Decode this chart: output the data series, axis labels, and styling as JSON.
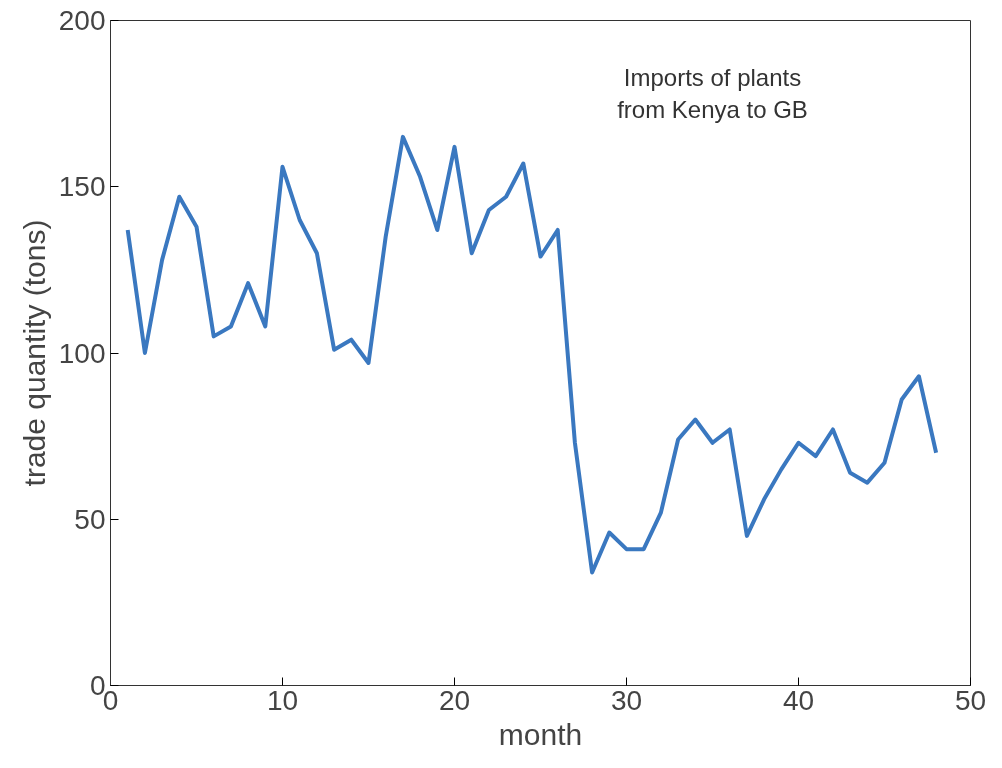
{
  "chart_data": {
    "type": "line",
    "xlabel": "month",
    "ylabel": "trade quantity (tons)",
    "annotations": [
      "Imports of plants\nfrom Kenya to GB"
    ],
    "x": [
      1,
      2,
      3,
      4,
      5,
      6,
      7,
      8,
      9,
      10,
      11,
      12,
      13,
      14,
      15,
      16,
      17,
      18,
      19,
      20,
      21,
      22,
      23,
      24,
      25,
      26,
      27,
      28,
      29,
      30,
      31,
      32,
      33,
      34,
      35,
      36,
      37,
      38,
      39,
      40,
      41,
      42,
      43,
      44,
      45,
      46,
      47,
      48
    ],
    "series": [
      {
        "color": "#3a78c0",
        "values": [
          137,
          100,
          128,
          147,
          138,
          105,
          108,
          121,
          108,
          156,
          140,
          130,
          101,
          104,
          97,
          135,
          165,
          153,
          137,
          162,
          130,
          143,
          147,
          157,
          129,
          137,
          73,
          34,
          46,
          41,
          41,
          52,
          74,
          80,
          73,
          77,
          45,
          56,
          65,
          73,
          69,
          77,
          64,
          61,
          67,
          86,
          93,
          70
        ]
      }
    ],
    "xlim": [
      0,
      50
    ],
    "xticks": [
      0,
      10,
      20,
      30,
      40,
      50
    ],
    "ylim": [
      0,
      200
    ],
    "yticks": [
      0,
      50,
      100,
      150,
      200
    ],
    "grid": false,
    "marker": "none",
    "line_style": "solid"
  }
}
